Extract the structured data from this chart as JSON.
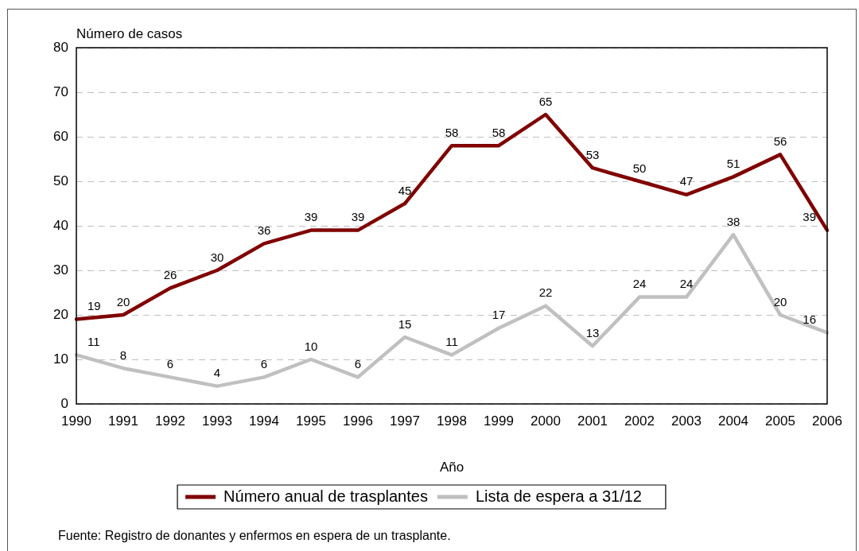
{
  "chart_data": {
    "type": "line",
    "ylabel": "Número de casos",
    "xlabel": "Año",
    "categories": [
      "1990",
      "1991",
      "1992",
      "1993",
      "1994",
      "1995",
      "1996",
      "1997",
      "1998",
      "1999",
      "2000",
      "2001",
      "2002",
      "2003",
      "2004",
      "2005",
      "2006"
    ],
    "series": [
      {
        "name": "Número anual de trasplantes",
        "color": "#800000",
        "values": [
          19,
          20,
          26,
          30,
          36,
          39,
          39,
          45,
          58,
          58,
          65,
          53,
          50,
          47,
          51,
          56,
          39
        ]
      },
      {
        "name": "Lista de espera a 31/12",
        "color": "#c0c0c0",
        "values": [
          11,
          8,
          6,
          4,
          6,
          10,
          6,
          15,
          11,
          17,
          22,
          13,
          24,
          24,
          38,
          20,
          16
        ]
      }
    ],
    "ylim": [
      0,
      80
    ],
    "yticks": [
      0,
      10,
      20,
      30,
      40,
      50,
      60,
      70,
      80
    ],
    "grid": "y",
    "legend": "bottom",
    "data_labels": true,
    "marker": "none",
    "line_style": "solid",
    "annotations": [
      "Fuente: Registro de donantes y enfermos en espera de un trasplante."
    ]
  }
}
